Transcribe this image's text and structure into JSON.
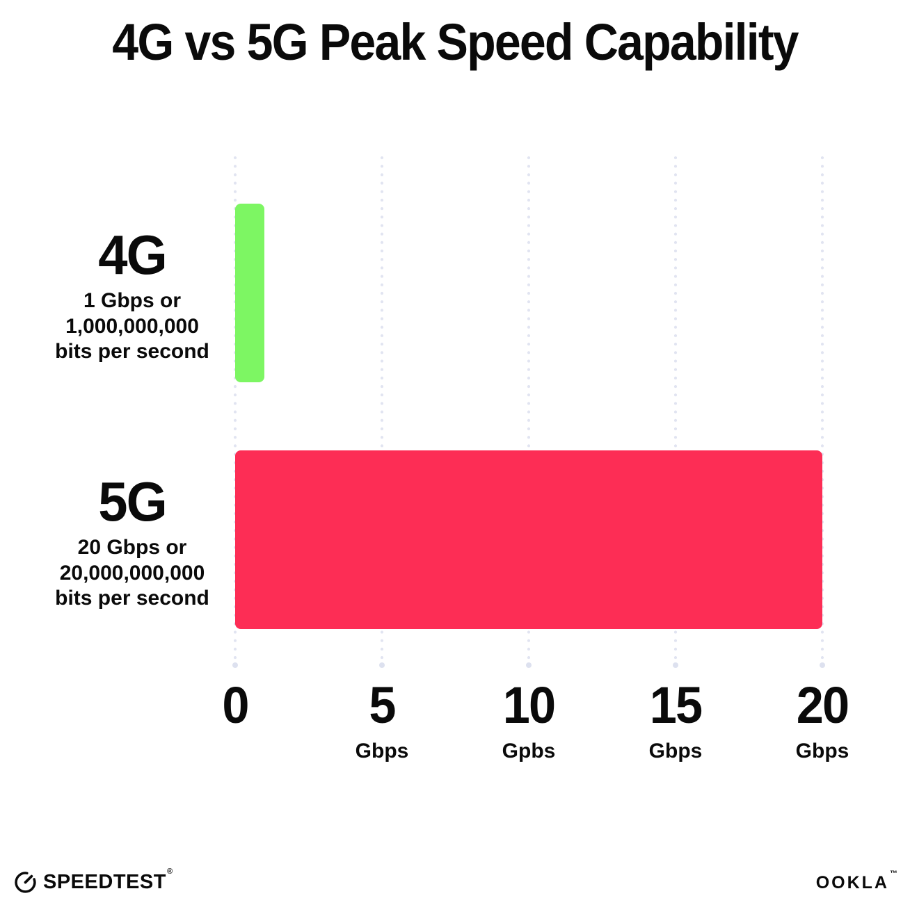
{
  "title": "4G vs 5G Peak Speed Capability",
  "colors": {
    "bar_4g": "#7df663",
    "bar_5g": "#fd2d55",
    "grid_dot": "#e1e4f1",
    "text": "#0a0a0a",
    "background": "#ffffff"
  },
  "chart_data": {
    "type": "bar",
    "orientation": "horizontal",
    "title": "4G vs 5G Peak Speed Capability",
    "categories": [
      "4G",
      "5G"
    ],
    "values": [
      1,
      20
    ],
    "unit": "Gbps",
    "xlim": [
      0,
      20
    ],
    "grid": "dotted-vertical",
    "legend": "none",
    "bars": [
      {
        "label": "4G",
        "value": 1,
        "color": "#7df663",
        "sublabel_lines": [
          "1 Gbps or",
          "1,000,000,000",
          "bits per second"
        ]
      },
      {
        "label": "5G",
        "value": 20,
        "color": "#fd2d55",
        "sublabel_lines": [
          "20 Gbps or",
          "20,000,000,000",
          "bits per second"
        ]
      }
    ],
    "x_ticks": [
      {
        "value": 0,
        "label": "0",
        "unit": ""
      },
      {
        "value": 5,
        "label": "5",
        "unit": "Gbps"
      },
      {
        "value": 10,
        "label": "10",
        "unit": "Gpbs"
      },
      {
        "value": 15,
        "label": "15",
        "unit": "Gbps"
      },
      {
        "value": 20,
        "label": "20",
        "unit": "Gbps"
      }
    ]
  },
  "footer": {
    "speedtest_label": "SPEEDTEST",
    "speedtest_mark": "®",
    "ookla_label": "OOKLA",
    "ookla_mark": "™"
  }
}
